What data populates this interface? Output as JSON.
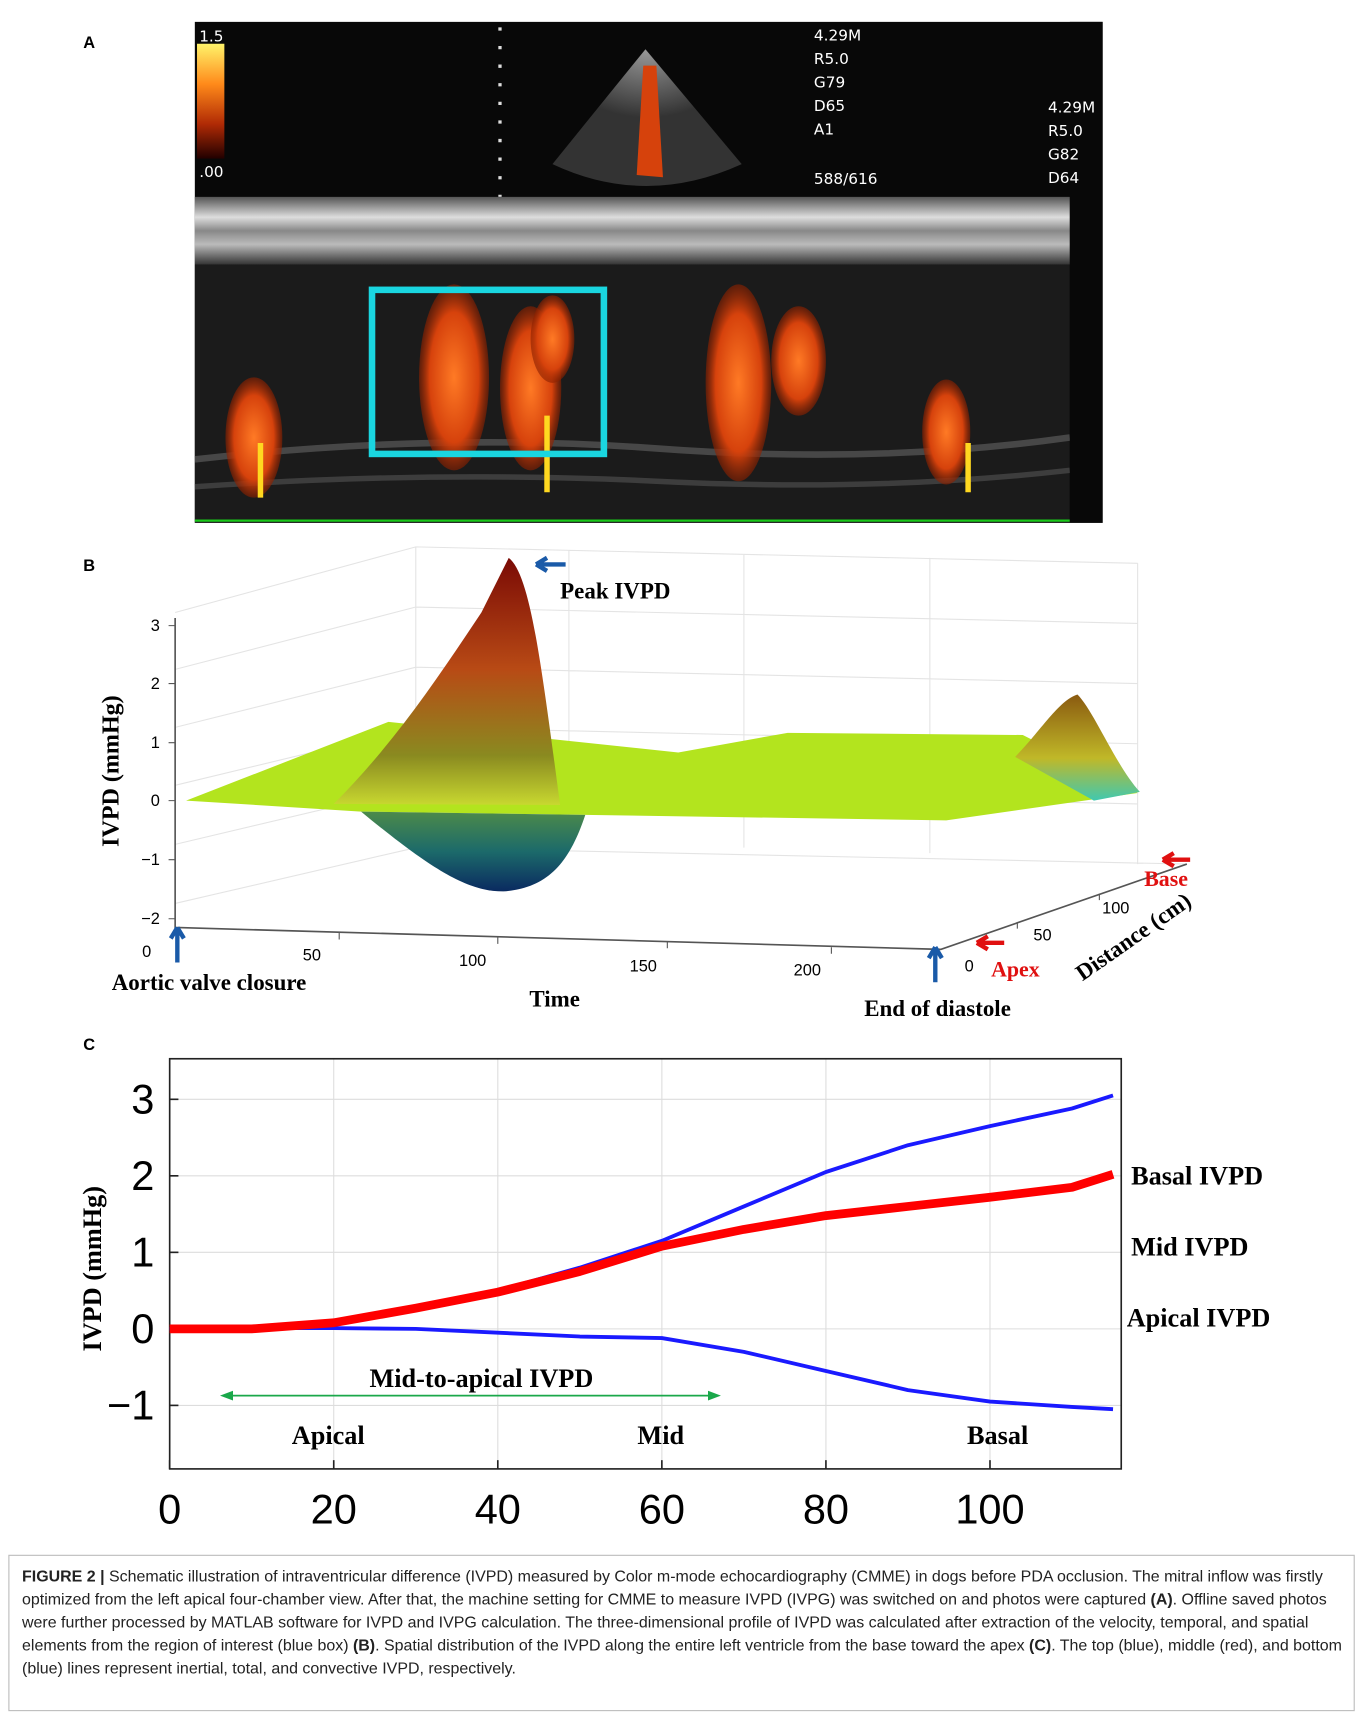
{
  "panel_a": {
    "label": "A",
    "scale_max": "1.5",
    "scale_min": ".00",
    "settings_1": [
      "4.29M",
      "R5.0",
      "G79",
      "D65",
      "A1"
    ],
    "frame": "588/616",
    "settings_2": [
      "4.29M",
      "R5.0",
      "G82",
      "D64"
    ]
  },
  "panel_b": {
    "label": "B",
    "z_axis_title": "IVPD (mmHg)",
    "z_ticks": [
      "3",
      "2",
      "1",
      "0",
      "−1",
      "−2"
    ],
    "time_ticks": [
      "0",
      "50",
      "100",
      "150",
      "200"
    ],
    "time_title": "Time",
    "distance_ticks": [
      "0",
      "50",
      "100"
    ],
    "distance_title": "Distance (cm)",
    "peak": "Peak IVPD",
    "start": "Aortic valve closure",
    "end": "End of diastole",
    "base": "Base",
    "apex": "Apex"
  },
  "chart_data": {
    "type": "line",
    "label": "C",
    "y_label": "IVPD (mmHg)",
    "x": [
      0,
      10,
      20,
      30,
      40,
      50,
      60,
      70,
      80,
      90,
      100,
      110,
      115
    ],
    "series": [
      {
        "color": "#1a1aff",
        "values": [
          0,
          0.02,
          0.1,
          0.28,
          0.5,
          0.8,
          1.15,
          1.6,
          2.05,
          2.4,
          2.65,
          2.88,
          3.05
        ]
      },
      {
        "color": "#ff0000",
        "values": [
          0,
          0,
          0.08,
          0.27,
          0.48,
          0.75,
          1.08,
          1.3,
          1.48,
          1.6,
          1.72,
          1.85,
          2.02
        ]
      },
      {
        "color": "#1a1aff",
        "values": [
          0,
          0.01,
          0.01,
          0,
          -0.05,
          -0.1,
          -0.12,
          -0.3,
          -0.55,
          -0.8,
          -0.95,
          -1.02,
          -1.05
        ]
      }
    ],
    "xlim": [
      0,
      116
    ],
    "xticks": [
      0,
      20,
      40,
      60,
      80,
      100
    ],
    "ylim": [
      -1.83,
      3.53
    ],
    "yticks": [
      {
        "value": -1,
        "label": "−1"
      },
      0,
      1,
      2,
      3
    ],
    "grid": true,
    "annotations": [
      "Mid-to-apical IVPD",
      "Apical",
      "Mid",
      "Basal",
      "Basal IVPD",
      "Mid IVPD",
      "Apical IVPD"
    ]
  },
  "caption": {
    "label": "FIGURE 2 |",
    "parts": [
      " Schematic illustration of intraventricular difference (IVPD) measured by Color m-mode echocardiography (CMME) in dogs before PDA occlusion. The mitral inflow was firstly optimized from the left apical four-chamber view. After that, the machine setting for CMME to measure IVPD (IVPG) was switched on and photos were captured ",
      "(A)",
      ". Offline saved photos were further processed by MATLAB software for IVPD and IVPG calculation. The three-dimensional profile of IVPD was calculated after extraction of the velocity, temporal, and spatial elements from the region of interest (blue box) ",
      "(B)",
      ". Spatial distribution of the IVPD along the entire left ventricle from the base toward the apex ",
      "(C)",
      ". The top (blue), middle (red), and bottom (blue) lines represent inertial, total, and convective IVPD, respectively."
    ]
  }
}
